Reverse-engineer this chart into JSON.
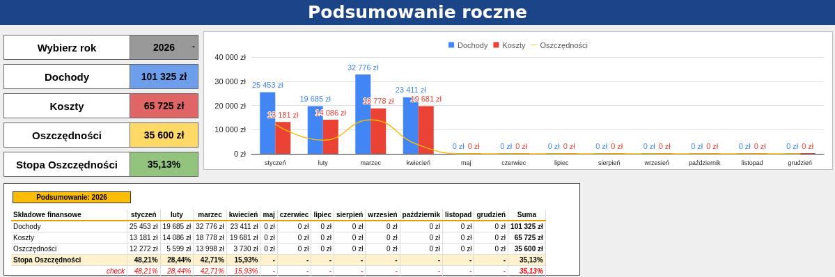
{
  "chart_data": [
    {
      "type": "other",
      "title": "Podsumowanie roczne",
      "annotations": [
        "Wybierz rok",
        "2026",
        "Dochody",
        "101 325 zł",
        "Koszty",
        "65 725 zł",
        "Oszczędności",
        "35 600 zł",
        "Stopa Oszczędności",
        "35,13%"
      ]
    },
    {
      "type": "bar",
      "categories": [
        "styczeń",
        "luty",
        "marzec",
        "kwiecień",
        "maj",
        "czerwiec",
        "lipiec",
        "sierpień",
        "wrzesień",
        "październik",
        "listopad",
        "grudzień"
      ],
      "series": [
        {
          "name": "Dochody",
          "color": "#4285f4",
          "values": [
            25453,
            19685,
            32776,
            23411,
            0,
            0,
            0,
            0,
            0,
            0,
            0,
            0
          ],
          "value_labels": [
            "25 453 zł",
            "19 685 zł",
            "32 776 zł",
            "23 411 zł",
            "0 zł",
            "0 zł",
            "0 zł",
            "0 zł",
            "0 zł",
            "0 zł",
            "0 zł",
            "0 zł"
          ]
        },
        {
          "name": "Koszty",
          "color": "#ea4335",
          "values": [
            13181,
            14086,
            18778,
            19681,
            0,
            0,
            0,
            0,
            0,
            0,
            0,
            0
          ],
          "value_labels": [
            "13 181 zł",
            "14 086 zł",
            "18 778 zł",
            "19 681 zł",
            "0 zł",
            "0 zł",
            "0 zł",
            "0 zł",
            "0 zł",
            "0 zł",
            "0 zł",
            "0 zł"
          ]
        },
        {
          "name": "Oszczędności",
          "type": "line",
          "color": "#fbbc04",
          "values": [
            12300,
            5600,
            14000,
            3700,
            0,
            0,
            0,
            0,
            0,
            0,
            0,
            0
          ]
        }
      ],
      "ylim": [
        0,
        40000
      ],
      "yticks": [
        {
          "value": 0,
          "label": "0 zł"
        },
        {
          "value": 10000,
          "label": "10 000 zł"
        },
        {
          "value": 20000,
          "label": "20 000 zł"
        },
        {
          "value": 30000,
          "label": "30 000 zł"
        },
        {
          "value": 40000,
          "label": "40 000 zł"
        }
      ],
      "grid": "y",
      "legend": "top",
      "marker": "none",
      "line_style": "solid"
    },
    {
      "type": "other",
      "title": "Podsumowanie: 2026",
      "xlabel": "Składowe finansowe",
      "categories": [
        "styczeń",
        "luty",
        "marzec",
        "kwiecień",
        "maj",
        "czerwiec",
        "lipiec",
        "sierpień",
        "wrzesień",
        "październik",
        "listopad",
        "grudzień",
        "Suma"
      ],
      "series": [
        {
          "name": "Dochody",
          "values": [
            25453,
            19685,
            32776,
            23411,
            0,
            0,
            0,
            0,
            0,
            0,
            0,
            0,
            101325
          ],
          "value_labels": [
            "25 453 zł",
            "19 685 zł",
            "32 776 zł",
            "23 411 zł",
            "0 zł",
            "0 zł",
            "0 zł",
            "0 zł",
            "0 zł",
            "0 zł",
            "0 zł",
            "0 zł",
            "101 325 zł"
          ]
        },
        {
          "name": "Koszty",
          "values": [
            13181,
            14086,
            18778,
            19681,
            0,
            0,
            0,
            0,
            0,
            0,
            0,
            0,
            65725
          ],
          "value_labels": [
            "13 181 zł",
            "14 086 zł",
            "18 778 zł",
            "19 681 zł",
            "0 zł",
            "0 zł",
            "0 zł",
            "0 zł",
            "0 zł",
            "0 zł",
            "0 zł",
            "0 zł",
            "65 725 zł"
          ]
        },
        {
          "name": "Oszczędności",
          "values": [
            12272,
            5599,
            13998,
            3730,
            0,
            0,
            0,
            0,
            0,
            0,
            0,
            0,
            35600
          ],
          "value_labels": [
            "12 272 zł",
            "5 599 zł",
            "13 998 zł",
            "3 730 zł",
            "0 zł",
            "0 zł",
            "0 zł",
            "0 zł",
            "0 zł",
            "0 zł",
            "0 zł",
            "0 zł",
            "35 600 zł"
          ]
        },
        {
          "name": "Stopa Oszczędności",
          "color": "#fff2cc",
          "values": [
            48.21,
            28.44,
            42.71,
            15.93,
            null,
            null,
            null,
            null,
            null,
            null,
            null,
            null,
            35.13
          ],
          "value_labels": [
            "48,21%",
            "28,44%",
            "42,71%",
            "15,93%",
            "-",
            "-",
            "-",
            "-",
            "-",
            "-",
            "-",
            "-",
            "35,13%"
          ]
        },
        {
          "name": "check",
          "color": "#ff0000",
          "values": [
            48.21,
            28.44,
            42.71,
            15.93,
            null,
            null,
            null,
            null,
            null,
            null,
            null,
            null,
            35.13
          ],
          "value_labels": [
            "48,21%",
            "28,44%",
            "42,71%",
            "15,93%",
            "-",
            "-",
            "-",
            "-",
            "-",
            "-",
            "-",
            "-",
            "35,13%"
          ]
        }
      ]
    }
  ]
}
